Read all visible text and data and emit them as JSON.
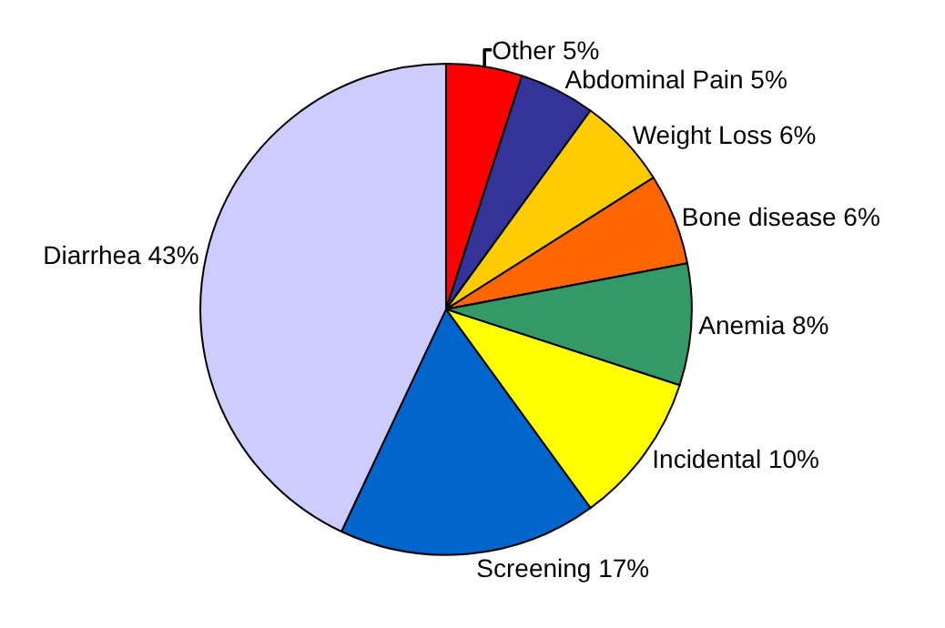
{
  "chart_data": {
    "type": "pie",
    "categories": [
      "Other",
      "Abdominal Pain",
      "Weight Loss",
      "Bone disease",
      "Anemia",
      "Incidental",
      "Screening",
      "Diarrhea"
    ],
    "values": [
      5,
      5,
      6,
      6,
      8,
      10,
      17,
      43
    ],
    "value_labels": [
      "5%",
      "5%",
      "6%",
      "6%",
      "8%",
      "10%",
      "17%",
      "43%"
    ],
    "colors": [
      "#ff0000",
      "#333399",
      "#ffcc00",
      "#ff6600",
      "#339966",
      "#ffff00",
      "#0066cc",
      "#ccccff"
    ],
    "legend": false
  }
}
